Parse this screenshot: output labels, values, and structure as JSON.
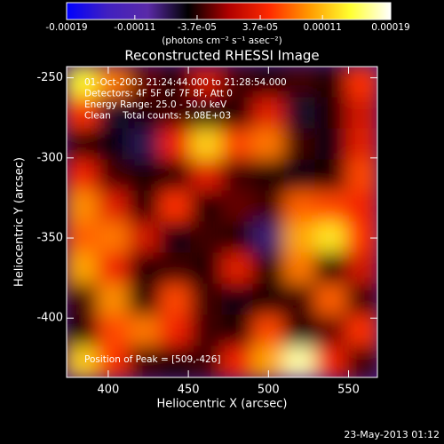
{
  "chart_data": {
    "type": "heatmap",
    "title": "Reconstructed RHESSI Image",
    "xlabel": "Heliocentric X (arcsec)",
    "ylabel": "Heliocentric Y (arcsec)",
    "xlim": [
      374,
      568
    ],
    "ylim": [
      -437,
      -243
    ],
    "xticks": [
      400,
      450,
      500,
      550
    ],
    "yticks": [
      -250,
      -300,
      -350,
      -400
    ],
    "z": [
      [
        0.00014,
        8e-05,
        -2e-05,
        -4e-05,
        2e-05,
        -3e-05,
        -4e-05,
        -3e-05,
        -4e-05,
        5e-05
      ],
      [
        5e-05,
        -6e-05,
        -4e-05,
        -3e-05,
        -5e-05,
        -4e-05,
        3e-05,
        -6e-05,
        -4e-05,
        2e-05
      ],
      [
        -4e-05,
        -5e-05,
        -7e-05,
        4e-05,
        0.00012,
        6e-05,
        8e-05,
        -3e-05,
        -5e-05,
        3e-05
      ],
      [
        4e-05,
        -3e-05,
        -4e-05,
        -4e-05,
        3e-05,
        -3e-05,
        -4e-05,
        -5e-05,
        -4e-05,
        6e-05
      ],
      [
        9e-05,
        3e-05,
        -4e-05,
        5e-05,
        -4e-05,
        -2e-05,
        -3e-05,
        7e-05,
        6e-05,
        4e-05
      ],
      [
        7e-05,
        8e-05,
        2e-05,
        -5e-05,
        -3e-05,
        -4e-05,
        -8e-05,
        0.0001,
        0.00013,
        5e-05
      ],
      [
        0.0001,
        4e-05,
        -4e-05,
        -3e-05,
        -4e-05,
        3e-05,
        -4e-05,
        8e-05,
        -4e-05,
        2e-05
      ],
      [
        -3e-05,
        9e-05,
        -4e-05,
        6e-05,
        -3e-05,
        -5e-05,
        -4e-05,
        -3e-05,
        7e-05,
        -3e-05
      ],
      [
        -4e-05,
        6e-05,
        8e-05,
        4e-05,
        -3e-05,
        -4e-05,
        6e-05,
        -4e-05,
        -2e-05,
        5e-05
      ],
      [
        0.00012,
        5e-05,
        -3e-05,
        -4e-05,
        -3e-05,
        4e-05,
        0.0001,
        0.00017,
        4e-05,
        -3e-05
      ]
    ],
    "clim": [
      -0.00019,
      0.00019
    ],
    "colorbar_ticks": [
      -0.00019,
      -0.00011,
      {
        "value": -3.7e-05,
        "label": "-3.7e-05"
      },
      {
        "value": 3.7e-05,
        "label": "3.7e-05"
      },
      0.00011,
      0.00019
    ],
    "colorbar_label": "(photons cm⁻² s⁻¹ asec⁻²)",
    "colors": [
      "#0000ff",
      "#4020c0",
      "#5a2aa8",
      "#000000",
      "#b00000",
      "#ff2a00",
      "#ff9a00",
      "#ffff30",
      "#ffffff"
    ],
    "annotations": [
      "01-Oct-2003 21:24:44.000 to 21:28:54.000",
      "Detectors: 4F 5F 6F 7F 8F, Att 0",
      "Energy Range: 25.0 - 50.0 keV",
      "Clean    Total counts: 5.08E+03"
    ],
    "peak_label": "Position of Peak = [509,-426]",
    "footer": "23-May-2013 01:12"
  }
}
